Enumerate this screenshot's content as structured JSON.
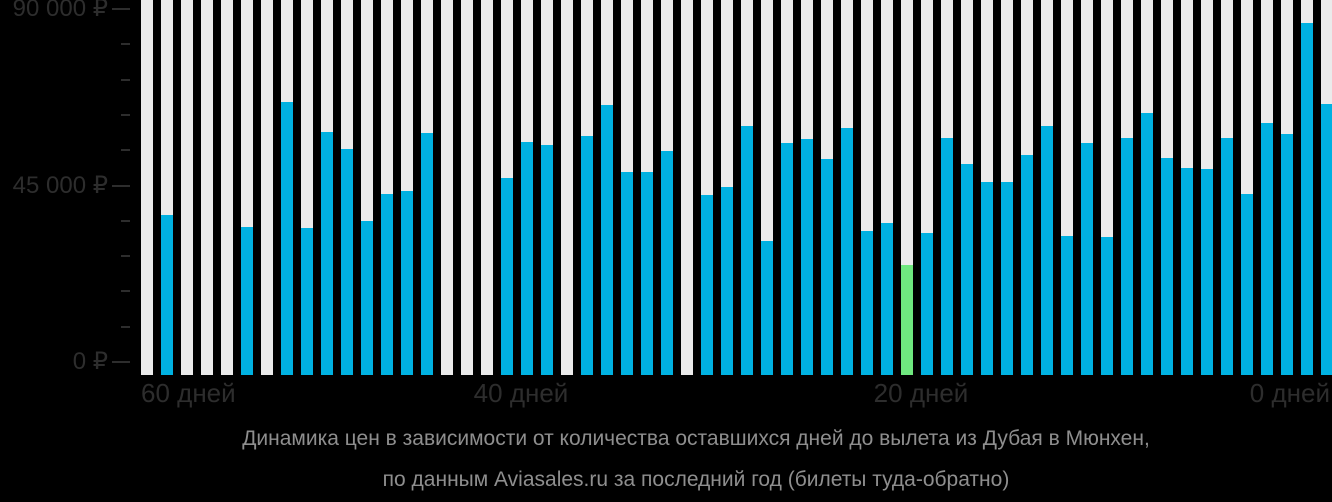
{
  "colors": {
    "background": "#000000",
    "bar_blue": "#00b1e1",
    "bar_highlight_green": "#6fe87f",
    "column_background": "#ebebeb",
    "axis_text": "#2d2d2d",
    "title_text": "#8e8e8e"
  },
  "chart_data": {
    "type": "bar",
    "title": "Динамика цен в зависимости от количества оставшихся дней до вылета из Дубая в Мюнхен,",
    "subtitle": "по данным Aviasales.ru за последний год (билеты туда-обратно)",
    "x_axis": {
      "unit": "дней до вылета",
      "direction": "left_to_right_decreasing",
      "ticks": [
        {
          "day": 60,
          "label": "60 дней"
        },
        {
          "day": 40,
          "label": "40 дней"
        },
        {
          "day": 20,
          "label": "20 дней"
        },
        {
          "day": 0,
          "label": "0 дней"
        }
      ]
    },
    "y_axis": {
      "unit": "₽",
      "ylim": [
        0,
        90000
      ],
      "minor_tick_step": 9000,
      "ticks": [
        {
          "value": 90000,
          "label": "90 000 ₽"
        },
        {
          "value": 45000,
          "label": "45 000 ₽"
        },
        {
          "value": 0,
          "label": "0 ₽"
        }
      ]
    },
    "highlight_meaning": "минимальная цена",
    "points": [
      {
        "day": 59,
        "value": null
      },
      {
        "day": 58,
        "value": 37500
      },
      {
        "day": 57,
        "value": null
      },
      {
        "day": 56,
        "value": null
      },
      {
        "day": 55,
        "value": null
      },
      {
        "day": 54,
        "value": 34300
      },
      {
        "day": 53,
        "value": null
      },
      {
        "day": 52,
        "value": 66400
      },
      {
        "day": 51,
        "value": 34200
      },
      {
        "day": 50,
        "value": 58700
      },
      {
        "day": 49,
        "value": 54400
      },
      {
        "day": 48,
        "value": 36000
      },
      {
        "day": 47,
        "value": 42800
      },
      {
        "day": 46,
        "value": 43700
      },
      {
        "day": 45,
        "value": 58500
      },
      {
        "day": 44,
        "value": null
      },
      {
        "day": 43,
        "value": null
      },
      {
        "day": 42,
        "value": null
      },
      {
        "day": 41,
        "value": 46800
      },
      {
        "day": 40,
        "value": 56200
      },
      {
        "day": 39,
        "value": 55300
      },
      {
        "day": 38,
        "value": null
      },
      {
        "day": 37,
        "value": 57600
      },
      {
        "day": 36,
        "value": 65500
      },
      {
        "day": 35,
        "value": 48500
      },
      {
        "day": 34,
        "value": 48500
      },
      {
        "day": 33,
        "value": 53900
      },
      {
        "day": 32,
        "value": null
      },
      {
        "day": 31,
        "value": 42600
      },
      {
        "day": 30,
        "value": 44500
      },
      {
        "day": 29,
        "value": 60200
      },
      {
        "day": 28,
        "value": 30900
      },
      {
        "day": 27,
        "value": 55900
      },
      {
        "day": 26,
        "value": 56800
      },
      {
        "day": 25,
        "value": 51700
      },
      {
        "day": 24,
        "value": 59600
      },
      {
        "day": 23,
        "value": 33500
      },
      {
        "day": 22,
        "value": 35500
      },
      {
        "day": 21,
        "value": 24700,
        "highlight": true
      },
      {
        "day": 20,
        "value": 32800
      },
      {
        "day": 19,
        "value": 57000
      },
      {
        "day": 18,
        "value": 50500
      },
      {
        "day": 17,
        "value": 46000
      },
      {
        "day": 16,
        "value": 45800
      },
      {
        "day": 15,
        "value": 52800
      },
      {
        "day": 14,
        "value": 60200
      },
      {
        "day": 13,
        "value": 32100
      },
      {
        "day": 12,
        "value": 55900
      },
      {
        "day": 11,
        "value": 31800
      },
      {
        "day": 10,
        "value": 57000
      },
      {
        "day": 9,
        "value": 63600
      },
      {
        "day": 8,
        "value": 51900
      },
      {
        "day": 7,
        "value": 49400
      },
      {
        "day": 6,
        "value": 49100
      },
      {
        "day": 5,
        "value": 57000
      },
      {
        "day": 4,
        "value": 42800
      },
      {
        "day": 3,
        "value": 61000
      },
      {
        "day": 2,
        "value": 58100
      },
      {
        "day": 1,
        "value": 86400
      },
      {
        "day": 0,
        "value": 65700
      }
    ]
  }
}
